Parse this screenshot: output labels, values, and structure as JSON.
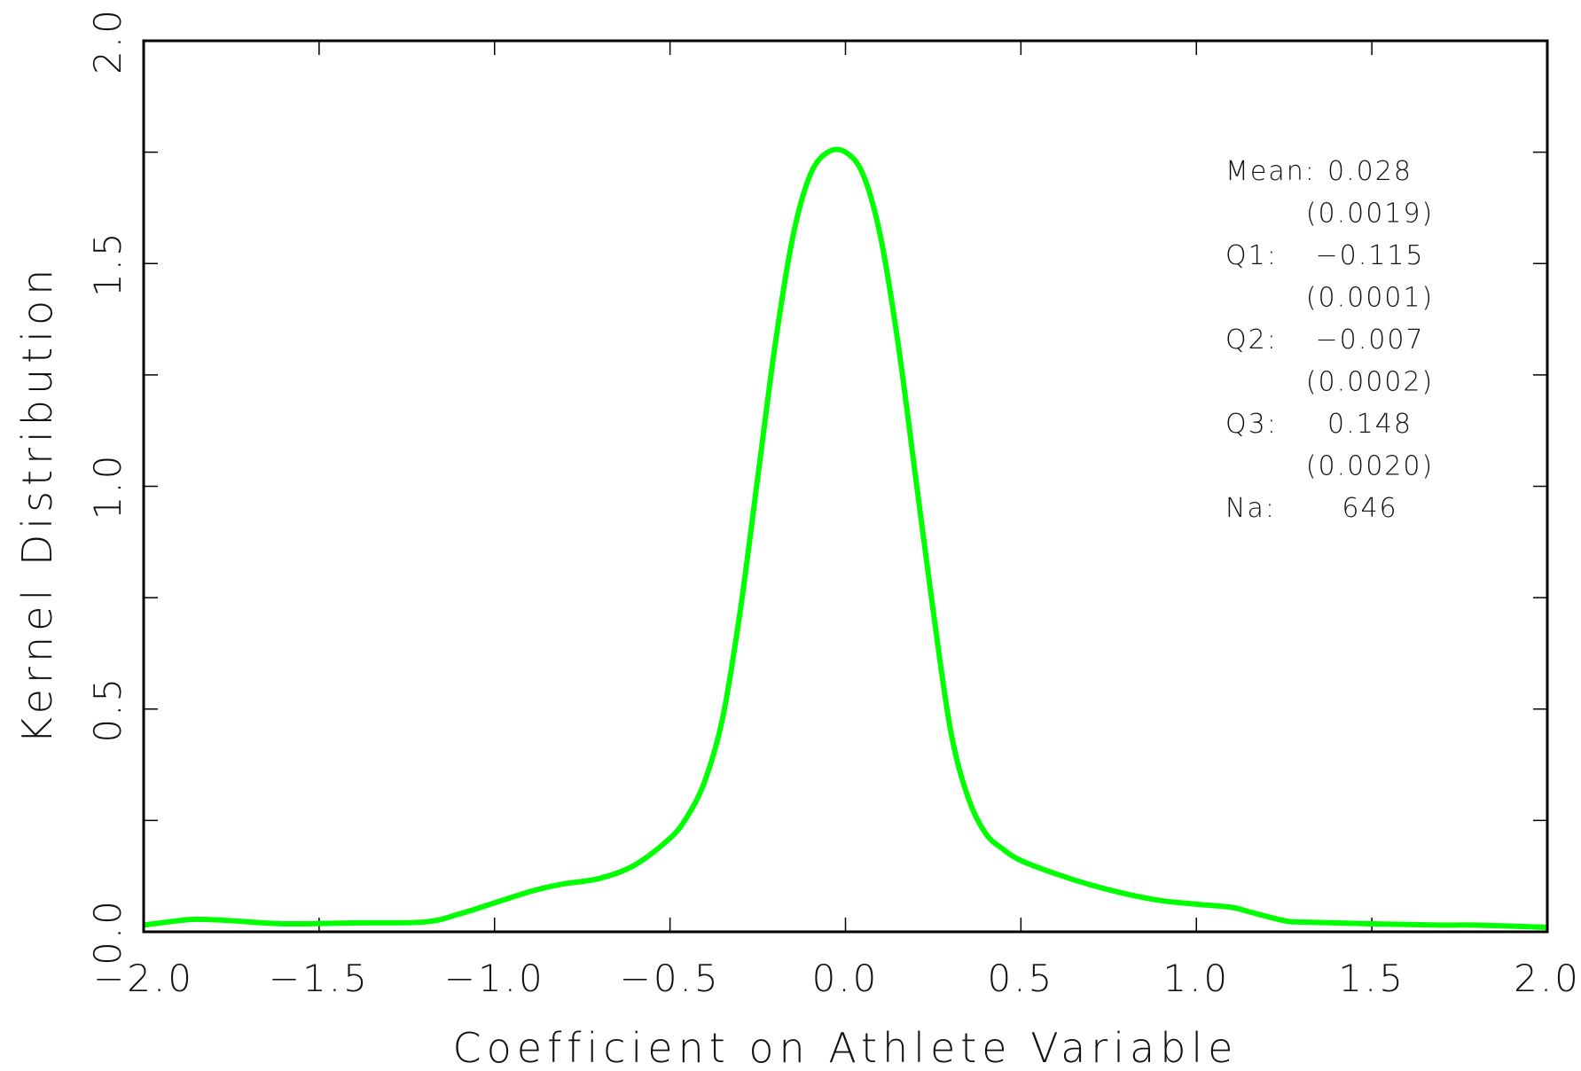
{
  "chart_data": {
    "type": "line",
    "title": "",
    "xlabel": "Coefficient on Athlete Variable",
    "ylabel": "Kernel Distribution",
    "xlim": [
      -2.0,
      2.0
    ],
    "ylim": [
      0.0,
      2.0
    ],
    "grid": false,
    "x_ticks": [
      -2.0,
      -1.5,
      -1.0,
      -0.5,
      0.0,
      0.5,
      1.0,
      1.5,
      2.0
    ],
    "x_tick_labels": [
      "−2.0",
      "−1.5",
      "−1.0",
      "−0.5",
      "0.0",
      "0.5",
      "1.0",
      "1.5",
      "2.0"
    ],
    "y_ticks": [
      0.0,
      0.5,
      1.0,
      1.5,
      2.0
    ],
    "y_tick_labels": [
      "0.0",
      "0.5",
      "1.0",
      "1.5",
      "2.0"
    ],
    "series": [
      {
        "color": "#00ff00",
        "x": [
          -2.0,
          -1.9,
          -1.85,
          -1.75,
          -1.6,
          -1.4,
          -1.2,
          -1.1,
          -1.0,
          -0.9,
          -0.85,
          -0.8,
          -0.7,
          -0.6,
          -0.5,
          -0.45,
          -0.4,
          -0.35,
          -0.3,
          -0.25,
          -0.2,
          -0.15,
          -0.1,
          -0.05,
          0.0,
          0.05,
          0.1,
          0.15,
          0.2,
          0.25,
          0.3,
          0.35,
          0.4,
          0.45,
          0.5,
          0.6,
          0.7,
          0.8,
          0.9,
          1.0,
          1.1,
          1.15,
          1.25,
          1.3,
          1.5,
          1.7,
          1.8,
          2.0
        ],
        "y": [
          0.015,
          0.025,
          0.028,
          0.025,
          0.018,
          0.02,
          0.022,
          0.04,
          0.065,
          0.09,
          0.1,
          0.108,
          0.12,
          0.15,
          0.21,
          0.26,
          0.34,
          0.48,
          0.72,
          1.02,
          1.32,
          1.56,
          1.7,
          1.75,
          1.75,
          1.7,
          1.56,
          1.32,
          1.02,
          0.72,
          0.45,
          0.3,
          0.22,
          0.185,
          0.16,
          0.13,
          0.105,
          0.085,
          0.07,
          0.062,
          0.055,
          0.045,
          0.025,
          0.022,
          0.018,
          0.015,
          0.015,
          0.01
        ]
      }
    ]
  },
  "stats": [
    {
      "label": "Mean:",
      "value": "0.028"
    },
    {
      "label": "",
      "value": "(0.0019)"
    },
    {
      "label": "Q1:",
      "value": "−0.115"
    },
    {
      "label": "",
      "value": "(0.0001)"
    },
    {
      "label": "Q2:",
      "value": "−0.007"
    },
    {
      "label": "",
      "value": "(0.0002)"
    },
    {
      "label": "Q3:",
      "value": "0.148"
    },
    {
      "label": "",
      "value": "(0.0020)"
    },
    {
      "label": "Na:",
      "value": "646"
    }
  ]
}
